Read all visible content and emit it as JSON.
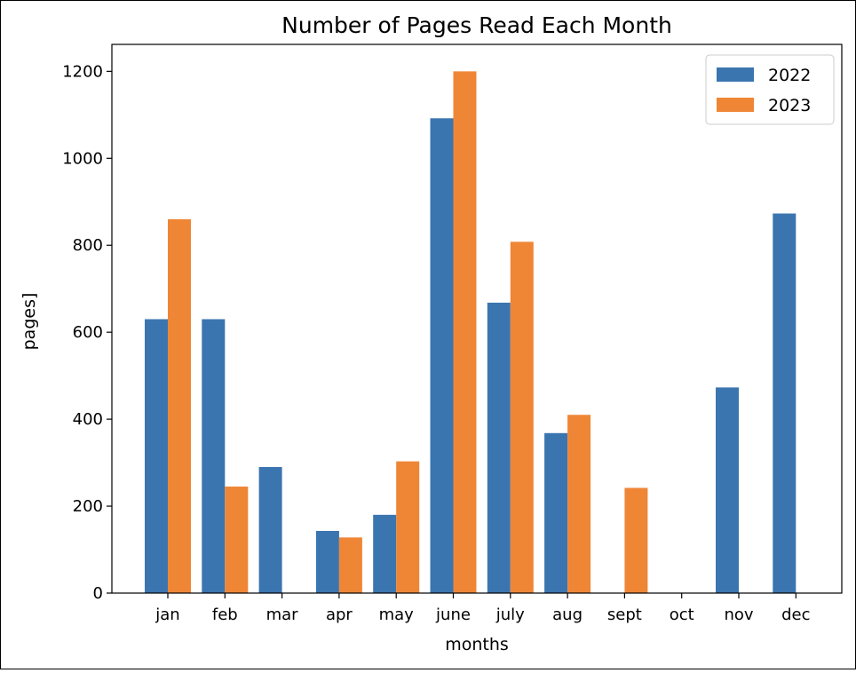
{
  "chart_data": {
    "type": "bar",
    "title": "Number of Pages Read Each Month",
    "xlabel": "months",
    "ylabel": "pages]",
    "categories": [
      "jan",
      "feb",
      "mar",
      "apr",
      "may",
      "june",
      "july",
      "aug",
      "sept",
      "oct",
      "nov",
      "dec"
    ],
    "series": [
      {
        "name": "2022",
        "color": "#3b75af",
        "values": [
          630,
          630,
          290,
          143,
          180,
          1092,
          668,
          368,
          0,
          0,
          473,
          873
        ]
      },
      {
        "name": "2023",
        "color": "#ef8636",
        "values": [
          860,
          245,
          0,
          128,
          303,
          1200,
          808,
          410,
          242,
          0,
          0,
          0
        ]
      }
    ],
    "ylim": [
      0,
      1262
    ],
    "yticks": [
      0,
      200,
      400,
      600,
      800,
      1000,
      1200
    ],
    "grid": false,
    "legend_position": "top-right"
  }
}
